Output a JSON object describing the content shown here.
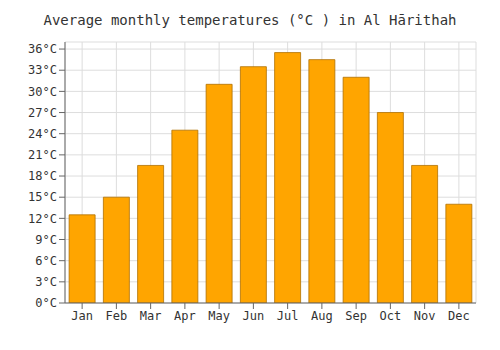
{
  "chart_data": {
    "type": "bar",
    "title": "Average monthly temperatures (°C ) in Al Hārithah",
    "categories": [
      "Jan",
      "Feb",
      "Mar",
      "Apr",
      "May",
      "Jun",
      "Jul",
      "Aug",
      "Sep",
      "Oct",
      "Nov",
      "Dec"
    ],
    "values": [
      12.5,
      15.0,
      19.5,
      24.5,
      31.0,
      33.5,
      35.5,
      34.5,
      32.0,
      27.0,
      19.5,
      14.0
    ],
    "color": "#FFA500",
    "ylim": [
      0,
      37
    ],
    "yticks": [
      {
        "value": 0,
        "label": "0°C"
      },
      {
        "value": 3,
        "label": "3°C"
      },
      {
        "value": 6,
        "label": "6°C"
      },
      {
        "value": 9,
        "label": "9°C"
      },
      {
        "value": 12,
        "label": "12°C"
      },
      {
        "value": 15,
        "label": "15°C"
      },
      {
        "value": 18,
        "label": "18°C"
      },
      {
        "value": 21,
        "label": "21°C"
      },
      {
        "value": 24,
        "label": "24°C"
      },
      {
        "value": 27,
        "label": "27°C"
      },
      {
        "value": 30,
        "label": "30°C"
      },
      {
        "value": 33,
        "label": "33°C"
      },
      {
        "value": 36,
        "label": "36°C"
      }
    ],
    "grid": true
  }
}
